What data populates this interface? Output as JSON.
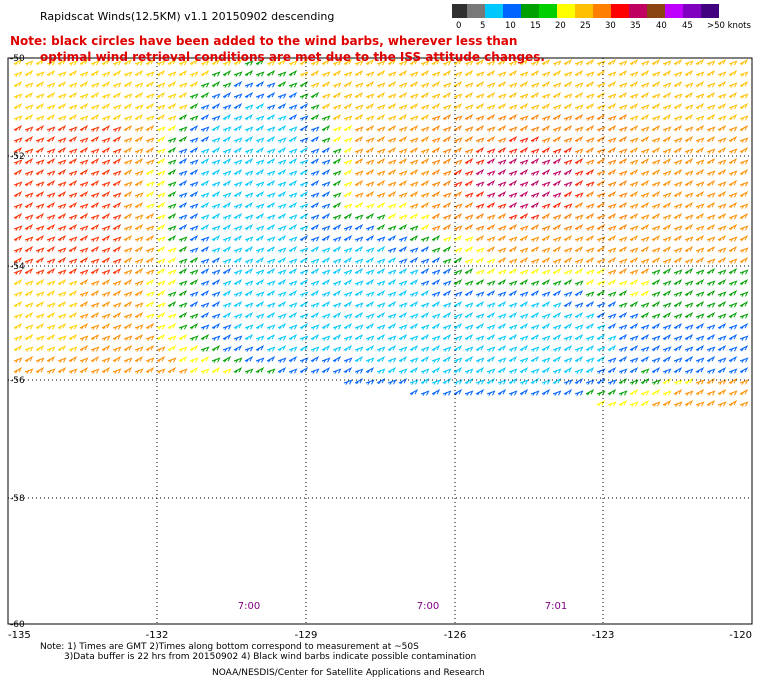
{
  "title": "Rapidscat Winds(12.5KM) v1.1 20150902 descending",
  "note": {
    "line1": "Note: black circles have been added to the wind barbs, wherever less than",
    "line2": "optimal wind retrieval conditions are met due to the ISS attitude changes."
  },
  "legend": {
    "labels": [
      "0",
      "5",
      "10",
      "15",
      "20",
      "25",
      "30",
      "35",
      "40",
      "45",
      ">50 knots"
    ],
    "colors": [
      "#303030",
      "#787878",
      "#00c8ff",
      "#0064ff",
      "#00a000",
      "#00d000",
      "#ffff00",
      "#ffc000",
      "#ff8000",
      "#ff0000",
      "#c00060",
      "#8b4513",
      "#c000ff",
      "#8000c0",
      "#400080"
    ]
  },
  "map": {
    "lat_labels": [
      "-50",
      "-52",
      "-54",
      "-56",
      "-58",
      "-60"
    ],
    "lon_labels": [
      "-135",
      "-132",
      "-129",
      "-126",
      "-123",
      "-120"
    ],
    "time_labels": [
      "7:00",
      "7:00",
      "7:01"
    ],
    "time_label_color": "#800080"
  },
  "footer": {
    "line1": "Note: 1) Times are GMT 2)Times along bottom correspond to measurement at ~50S",
    "line2": "3)Data buffer is 22 hrs from 20150902 4) Black wind barbs indicate possible contamination",
    "credit": "NOAA/NESDIS/Center for Satellite Applications and Research"
  }
}
